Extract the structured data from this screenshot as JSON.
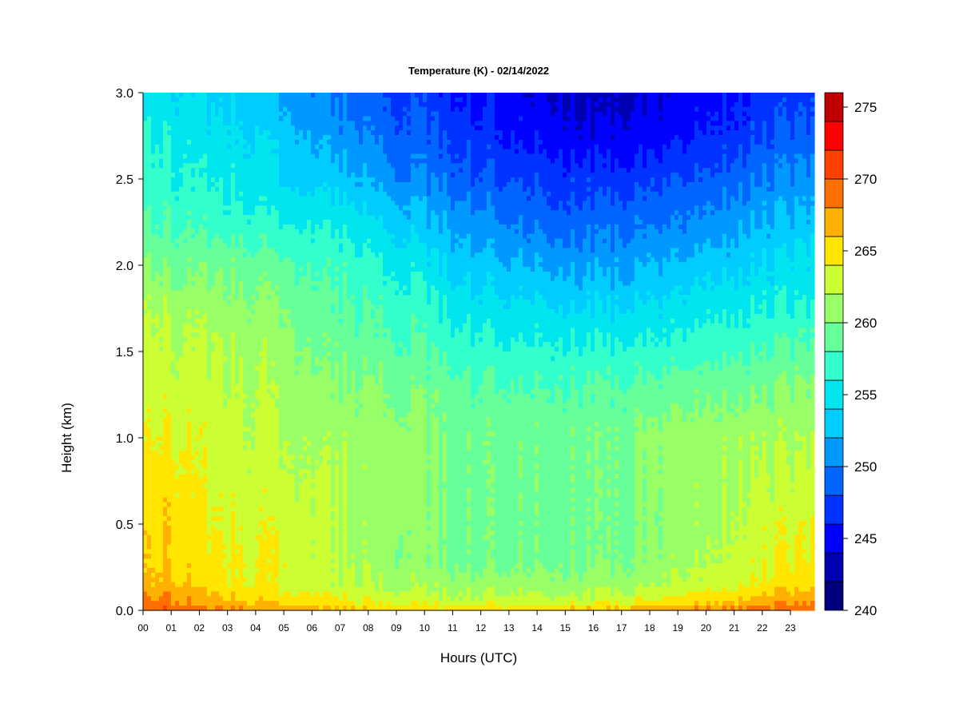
{
  "chart_data": {
    "type": "heatmap",
    "title": "Temperature (K) - 02/14/2022",
    "xlabel": "Hours (UTC)",
    "ylabel": "Height (km)",
    "x_ticks": [
      "00",
      "01",
      "02",
      "03",
      "04",
      "05",
      "06",
      "07",
      "08",
      "09",
      "10",
      "11",
      "12",
      "13",
      "14",
      "15",
      "16",
      "17",
      "18",
      "19",
      "20",
      "21",
      "22",
      "23"
    ],
    "y_ticks": [
      "0.0",
      "0.5",
      "1.0",
      "1.5",
      "2.0",
      "2.5",
      "3.0"
    ],
    "xlim": [
      0,
      23.85
    ],
    "ylim": [
      0,
      3.0
    ],
    "colorbar": {
      "ticks": [
        "240",
        "245",
        "250",
        "255",
        "260",
        "265",
        "270",
        "275"
      ],
      "range": [
        240,
        276
      ],
      "step": 2,
      "colors": [
        "#00007F",
        "#0000B3",
        "#0000FF",
        "#0033FF",
        "#0066FF",
        "#0099FF",
        "#00CCFF",
        "#00E5EE",
        "#33FFCC",
        "#66FF99",
        "#99FF66",
        "#CCFF33",
        "#FFE500",
        "#FFB000",
        "#FF7000",
        "#FF4000",
        "#FF0000",
        "#C00000"
      ]
    },
    "temperature_profiles_K": {
      "height_km": [
        0.0,
        0.05,
        0.15,
        0.3,
        0.5,
        0.75,
        1.0,
        1.25,
        1.5,
        1.75,
        2.0,
        2.25,
        2.5,
        2.75,
        3.0
      ],
      "hours": [
        0,
        1,
        2,
        3,
        4,
        5,
        6,
        7,
        8,
        9,
        10,
        11,
        12,
        13,
        14,
        15,
        16,
        17,
        18,
        19,
        20,
        21,
        22,
        23,
        23.85
      ],
      "values": [
        [
          269.5,
          268.5,
          266.5,
          265.5,
          265.5,
          265.0,
          264.0,
          263.0,
          263.0,
          262.0,
          260.0,
          258.0,
          257.0,
          256.0,
          255.0
        ],
        [
          269.5,
          268.5,
          266.5,
          265.5,
          265.5,
          265.0,
          264.0,
          263.0,
          262.5,
          261.5,
          259.5,
          257.5,
          256.5,
          255.5,
          254.5
        ],
        [
          269.0,
          267.5,
          265.5,
          265.0,
          264.5,
          264.0,
          263.5,
          263.0,
          262.5,
          261.5,
          259.5,
          257.5,
          256.0,
          255.0,
          254.0
        ],
        [
          268.5,
          266.5,
          264.5,
          264.5,
          263.5,
          263.0,
          263.0,
          262.5,
          262.0,
          261.0,
          259.5,
          257.0,
          255.5,
          254.5,
          253.5
        ],
        [
          268.0,
          266.0,
          264.0,
          264.0,
          263.5,
          263.0,
          262.5,
          262.0,
          261.5,
          260.5,
          259.0,
          256.5,
          255.0,
          254.0,
          252.5
        ],
        [
          267.5,
          265.5,
          263.5,
          264.0,
          263.5,
          262.5,
          262.0,
          261.5,
          261.0,
          260.0,
          258.5,
          256.0,
          254.0,
          253.0,
          251.5
        ],
        [
          267.0,
          265.0,
          263.0,
          263.0,
          263.0,
          262.5,
          262.0,
          261.0,
          260.0,
          259.0,
          258.0,
          256.0,
          253.5,
          252.0,
          250.5
        ],
        [
          266.5,
          264.5,
          262.5,
          262.0,
          262.0,
          262.0,
          261.5,
          260.5,
          259.5,
          258.5,
          257.5,
          255.5,
          253.0,
          251.0,
          249.5
        ],
        [
          266.0,
          264.0,
          262.0,
          261.5,
          261.0,
          261.0,
          261.0,
          260.5,
          259.0,
          258.0,
          256.5,
          254.5,
          252.0,
          250.0,
          248.5
        ],
        [
          265.5,
          263.5,
          261.5,
          260.5,
          261.0,
          261.0,
          261.0,
          260.0,
          258.5,
          257.5,
          255.5,
          253.5,
          250.5,
          249.0,
          248.0
        ],
        [
          265.5,
          263.0,
          261.5,
          260.5,
          260.5,
          260.5,
          260.5,
          259.5,
          258.0,
          256.5,
          255.0,
          252.5,
          250.0,
          248.5,
          247.0
        ],
        [
          265.5,
          263.0,
          261.0,
          259.5,
          259.5,
          259.5,
          259.5,
          259.0,
          257.5,
          255.5,
          253.5,
          251.5,
          249.0,
          247.5,
          246.0
        ],
        [
          265.5,
          263.0,
          261.0,
          259.5,
          259.5,
          259.5,
          259.5,
          258.5,
          257.0,
          255.0,
          253.0,
          251.0,
          248.5,
          247.0,
          245.5
        ],
        [
          265.5,
          263.0,
          261.0,
          259.5,
          259.5,
          259.5,
          259.5,
          258.5,
          256.5,
          254.5,
          252.5,
          250.0,
          248.0,
          246.0,
          245.0
        ],
        [
          266.0,
          263.0,
          261.0,
          259.5,
          259.5,
          259.5,
          259.5,
          258.5,
          256.5,
          254.5,
          252.0,
          249.5,
          247.5,
          245.5,
          244.0
        ],
        [
          266.0,
          263.0,
          261.0,
          259.5,
          259.5,
          259.5,
          259.5,
          258.5,
          256.5,
          254.0,
          251.5,
          249.0,
          247.0,
          245.0,
          243.5
        ],
        [
          266.5,
          263.0,
          261.0,
          259.5,
          259.5,
          259.5,
          259.5,
          258.5,
          256.5,
          254.0,
          251.5,
          249.0,
          247.0,
          244.5,
          243.0
        ],
        [
          267.0,
          263.5,
          261.0,
          260.0,
          259.5,
          259.5,
          259.5,
          258.5,
          256.5,
          254.0,
          251.5,
          249.5,
          247.0,
          244.5,
          243.5
        ],
        [
          267.5,
          264.0,
          261.5,
          260.5,
          260.0,
          260.5,
          260.5,
          259.0,
          256.5,
          254.5,
          252.0,
          249.5,
          247.5,
          245.0,
          244.0
        ],
        [
          268.0,
          265.0,
          262.5,
          261.5,
          261.0,
          261.0,
          261.0,
          259.5,
          257.0,
          255.0,
          252.5,
          250.0,
          248.0,
          245.5,
          244.5
        ],
        [
          268.5,
          265.5,
          263.0,
          262.0,
          261.5,
          261.5,
          261.0,
          259.5,
          257.5,
          255.5,
          253.0,
          251.0,
          248.5,
          246.5,
          245.0
        ],
        [
          269.0,
          266.5,
          263.5,
          263.0,
          262.5,
          262.0,
          261.5,
          260.0,
          258.0,
          256.0,
          253.5,
          251.5,
          249.5,
          247.0,
          246.0
        ],
        [
          269.5,
          267.0,
          264.5,
          263.5,
          263.0,
          262.5,
          261.5,
          260.0,
          258.0,
          256.0,
          254.0,
          252.0,
          250.0,
          248.0,
          246.5
        ],
        [
          269.5,
          267.5,
          265.0,
          264.0,
          263.5,
          262.5,
          261.5,
          260.5,
          258.5,
          256.0,
          254.5,
          252.5,
          250.5,
          248.5,
          247.0
        ],
        [
          269.5,
          267.5,
          265.0,
          264.0,
          263.5,
          262.5,
          261.5,
          260.5,
          258.5,
          256.0,
          254.5,
          252.5,
          250.5,
          248.5,
          247.0
        ]
      ]
    }
  }
}
